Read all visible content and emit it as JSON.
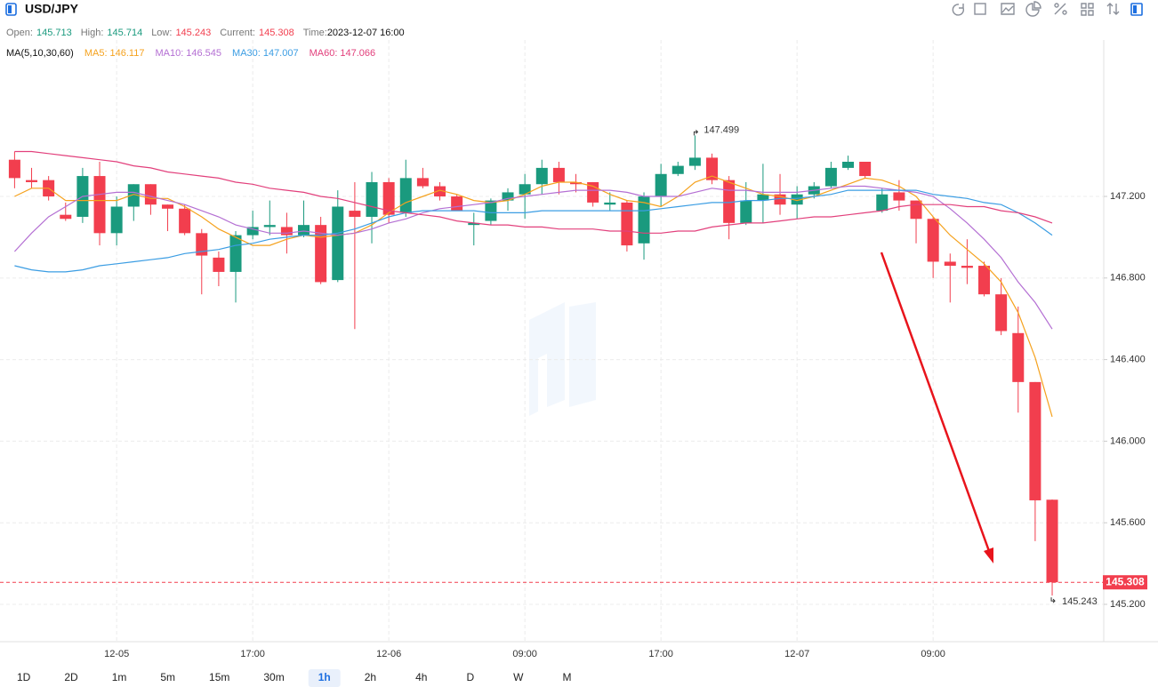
{
  "header": {
    "symbol": "USD/JPY",
    "labels": {
      "open": "Open:",
      "high": "High:",
      "low": "Low:",
      "current": "Current:",
      "time": "Time:"
    },
    "time": "2023-12-07 16:00"
  },
  "chart_data": {
    "type": "candlestick",
    "categories": [
      null,
      null,
      null,
      null,
      null,
      null,
      "12-05",
      null,
      null,
      null,
      null,
      null,
      null,
      null,
      "17:00",
      null,
      null,
      null,
      null,
      null,
      null,
      null,
      "12-06",
      null,
      null,
      null,
      null,
      null,
      null,
      null,
      "09:00",
      null,
      null,
      null,
      null,
      null,
      null,
      null,
      "17:00",
      null,
      null,
      null,
      null,
      null,
      null,
      null,
      "12-07",
      null,
      null,
      null,
      null,
      null,
      null,
      null,
      "09:00",
      null,
      null,
      null,
      null,
      null,
      null,
      null
    ],
    "open": [
      147.38,
      147.28,
      147.28,
      147.11,
      147.1,
      147.3,
      147.02,
      147.15,
      147.26,
      147.16,
      147.14,
      147.02,
      146.9,
      146.83,
      147.01,
      147.05,
      147.05,
      147.01,
      147.06,
      146.79,
      147.13,
      147.1,
      147.27,
      147.12,
      147.29,
      147.25,
      147.2,
      147.06,
      147.08,
      147.18,
      147.21,
      147.26,
      147.34,
      147.27,
      147.27,
      147.16,
      147.17,
      146.97,
      147.2,
      147.31,
      147.35,
      147.39,
      147.28,
      147.07,
      147.18,
      147.21,
      147.16,
      147.21,
      147.25,
      147.34,
      147.37,
      147.13,
      147.22,
      147.18,
      147.09,
      146.88,
      146.86,
      146.86,
      146.72,
      146.53,
      146.29,
      145.713
    ],
    "high": [
      147.42,
      147.34,
      147.3,
      147.17,
      147.34,
      147.37,
      147.2,
      147.26,
      147.26,
      147.16,
      147.16,
      147.04,
      146.93,
      147.03,
      147.13,
      147.18,
      147.12,
      147.18,
      147.1,
      147.23,
      147.27,
      147.32,
      147.29,
      147.38,
      147.34,
      147.27,
      147.21,
      147.12,
      147.19,
      147.24,
      147.31,
      147.38,
      147.37,
      147.31,
      147.27,
      147.22,
      147.18,
      147.22,
      147.36,
      147.37,
      147.499,
      147.41,
      147.3,
      147.27,
      147.36,
      147.31,
      147.25,
      147.27,
      147.37,
      147.4,
      147.37,
      147.24,
      147.28,
      147.18,
      147.1,
      146.92,
      146.99,
      146.88,
      146.8,
      146.66,
      146.29,
      145.714
    ],
    "low": [
      147.24,
      147.24,
      147.18,
      147.08,
      147.07,
      146.96,
      146.96,
      147.08,
      147.11,
      147.03,
      147.01,
      146.72,
      146.76,
      146.68,
      146.99,
      147.01,
      146.92,
      147.0,
      146.77,
      146.78,
      146.55,
      146.97,
      147.07,
      147.1,
      147.24,
      147.18,
      147.13,
      146.96,
      147.06,
      147.13,
      147.09,
      147.21,
      147.21,
      147.22,
      147.15,
      147.13,
      146.93,
      146.89,
      147.15,
      147.3,
      147.33,
      147.26,
      146.99,
      147.06,
      147.07,
      147.11,
      147.09,
      147.19,
      147.24,
      147.33,
      147.29,
      147.12,
      147.13,
      146.97,
      146.8,
      146.68,
      146.77,
      146.71,
      146.52,
      146.14,
      145.51,
      145.243
    ],
    "close": [
      147.29,
      147.27,
      147.2,
      147.09,
      147.3,
      147.02,
      147.15,
      147.26,
      147.16,
      147.14,
      147.02,
      146.91,
      146.83,
      147.01,
      147.05,
      147.06,
      147.01,
      147.06,
      146.78,
      147.15,
      147.1,
      147.27,
      147.11,
      147.29,
      147.25,
      147.2,
      147.13,
      147.07,
      147.18,
      147.22,
      147.26,
      147.34,
      147.27,
      147.26,
      147.17,
      147.17,
      146.96,
      147.2,
      147.31,
      147.35,
      147.39,
      147.28,
      147.07,
      147.18,
      147.21,
      147.16,
      147.21,
      147.25,
      147.34,
      147.37,
      147.3,
      147.21,
      147.18,
      147.09,
      146.88,
      146.86,
      146.85,
      146.72,
      146.54,
      146.29,
      145.71,
      145.308
    ],
    "up_color": "#1a9a7e",
    "down_color": "#f23e4e",
    "ma_title": "MA(5,10,30,60)",
    "ma": [
      {
        "label": "MA5:",
        "last_label": "146.117",
        "color": "#f5a21e",
        "values": [
          147.2,
          147.24,
          147.24,
          147.18,
          147.18,
          147.18,
          147.18,
          147.21,
          147.19,
          147.19,
          147.15,
          147.1,
          147.04,
          147.0,
          146.96,
          146.96,
          146.99,
          147.01,
          147.0,
          147.01,
          147.02,
          147.06,
          147.12,
          147.17,
          147.2,
          147.23,
          147.21,
          147.18,
          147.17,
          147.18,
          147.21,
          147.25,
          147.27,
          147.27,
          147.25,
          147.21,
          147.18,
          147.17,
          147.15,
          147.2,
          147.27,
          147.3,
          147.27,
          147.24,
          147.21,
          147.2,
          147.18,
          147.2,
          147.23,
          147.26,
          147.29,
          147.28,
          147.25,
          147.2,
          147.1,
          147.01,
          146.94,
          146.87,
          146.78,
          146.63,
          146.41,
          146.12
        ]
      },
      {
        "label": "MA10:",
        "last_label": "146.545",
        "color": "#b46fd3",
        "values": [
          146.93,
          147.02,
          147.1,
          147.15,
          147.2,
          147.21,
          147.22,
          147.22,
          147.2,
          147.18,
          147.16,
          147.13,
          147.1,
          147.06,
          147.04,
          147.02,
          147.02,
          147.03,
          147.02,
          147.01,
          147.02,
          147.04,
          147.07,
          147.09,
          147.12,
          147.14,
          147.15,
          147.16,
          147.17,
          147.19,
          147.2,
          147.21,
          147.22,
          147.23,
          147.23,
          147.23,
          147.22,
          147.2,
          147.2,
          147.2,
          147.22,
          147.24,
          147.23,
          147.23,
          147.22,
          147.22,
          147.22,
          147.23,
          147.24,
          147.25,
          147.25,
          147.24,
          147.23,
          147.22,
          147.2,
          147.14,
          147.07,
          146.99,
          146.9,
          146.78,
          146.68,
          146.55
        ]
      },
      {
        "label": "MA30:",
        "last_label": "147.007",
        "color": "#3b9de3",
        "values": [
          146.86,
          146.84,
          146.83,
          146.83,
          146.84,
          146.86,
          146.87,
          146.88,
          146.89,
          146.9,
          146.92,
          146.93,
          146.94,
          146.96,
          146.97,
          146.99,
          147.0,
          147.01,
          147.01,
          147.02,
          147.04,
          147.07,
          147.1,
          147.12,
          147.13,
          147.13,
          147.13,
          147.13,
          147.12,
          147.12,
          147.12,
          147.13,
          147.13,
          147.13,
          147.13,
          147.13,
          147.13,
          147.13,
          147.14,
          147.15,
          147.16,
          147.17,
          147.17,
          147.18,
          147.18,
          147.19,
          147.19,
          147.2,
          147.21,
          147.23,
          147.23,
          147.23,
          147.23,
          147.23,
          147.21,
          147.2,
          147.19,
          147.17,
          147.16,
          147.12,
          147.07,
          147.01
        ]
      },
      {
        "label": "MA60:",
        "last_label": "147.066",
        "color": "#e2407c",
        "values": [
          147.42,
          147.42,
          147.41,
          147.4,
          147.39,
          147.38,
          147.37,
          147.35,
          147.34,
          147.32,
          147.31,
          147.3,
          147.29,
          147.27,
          147.26,
          147.24,
          147.23,
          147.22,
          147.2,
          147.19,
          147.17,
          147.15,
          147.13,
          147.12,
          147.11,
          147.1,
          147.08,
          147.07,
          147.06,
          147.06,
          147.05,
          147.05,
          147.04,
          147.04,
          147.04,
          147.03,
          147.03,
          147.02,
          147.02,
          147.03,
          147.03,
          147.05,
          147.06,
          147.07,
          147.07,
          147.08,
          147.09,
          147.1,
          147.1,
          147.11,
          147.12,
          147.13,
          147.15,
          147.16,
          147.16,
          147.16,
          147.15,
          147.15,
          147.13,
          147.12,
          147.1,
          147.07
        ]
      }
    ],
    "ylim": [
      145.017,
      147.967
    ],
    "yticks": [
      {
        "value": 145.2,
        "label": "145.200"
      },
      {
        "value": 145.6,
        "label": "145.600"
      },
      {
        "value": 146.0,
        "label": "146.000"
      },
      {
        "value": 146.4,
        "label": "146.400"
      },
      {
        "value": 146.8,
        "label": "146.800"
      },
      {
        "value": 147.2,
        "label": "147.200"
      }
    ],
    "grid": true
  },
  "timeframes": {
    "items": [
      "1D",
      "2D",
      "1m",
      "5m",
      "15m",
      "30m",
      "1h",
      "2h",
      "4h",
      "D",
      "W",
      "M"
    ],
    "active": "1h"
  }
}
